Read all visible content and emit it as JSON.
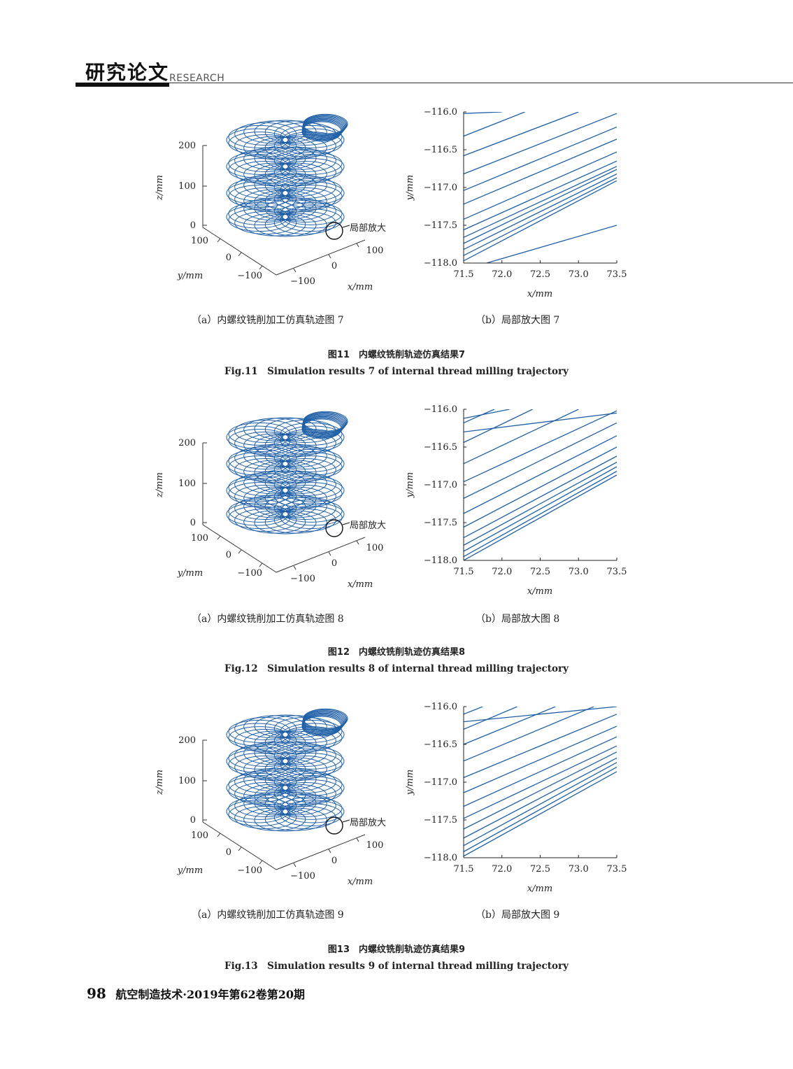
{
  "header": {
    "section_title": "研究论文",
    "section_en": "RESEARCH"
  },
  "figures": [
    {
      "sub_a_caption": "（a）内螺纹铣削加工仿真轨迹图 7",
      "sub_b_caption": "（b）局部放大图 7",
      "caption_cn": "图11　内螺纹铣削轨迹仿真结果7",
      "caption_en": "Fig.11　Simulation results 7 of internal thread milling trajectory",
      "plot3d": {
        "z_label": "z/mm",
        "y_label": "y/mm",
        "x_label": "x/mm",
        "z_ticks": [
          "200",
          "100",
          "0"
        ],
        "y_ticks": [
          "100",
          "0",
          "−100"
        ],
        "x_ticks": [
          "−100",
          "0",
          "100"
        ],
        "zoom_annotation": "局部放大"
      },
      "chart_data": {
        "type": "line",
        "xlabel": "x/mm",
        "ylabel": "y/mm",
        "xlim": [
          71.5,
          73.5
        ],
        "ylim": [
          -118.0,
          -116.0
        ],
        "x_ticks": [
          "71.5",
          "72.0",
          "72.5",
          "73.0",
          "73.5"
        ],
        "y_ticks": [
          "−116.0",
          "−116.5",
          "−117.0",
          "−117.5",
          "−118.0"
        ],
        "series": [
          {
            "x": [
              71.5,
              72.3
            ],
            "y": [
              -116.32,
              -116.0
            ]
          },
          {
            "x": [
              71.5,
              73.0
            ],
            "y": [
              -116.58,
              -116.0
            ]
          },
          {
            "x": [
              71.5,
              73.5
            ],
            "y": [
              -116.82,
              -116.02
            ]
          },
          {
            "x": [
              71.5,
              73.5
            ],
            "y": [
              -117.04,
              -116.2
            ]
          },
          {
            "x": [
              71.5,
              73.5
            ],
            "y": [
              -117.22,
              -116.36
            ]
          },
          {
            "x": [
              71.5,
              73.5
            ],
            "y": [
              -117.42,
              -116.53
            ]
          },
          {
            "x": [
              71.5,
              73.5
            ],
            "y": [
              -117.56,
              -116.65
            ]
          },
          {
            "x": [
              71.5,
              73.5
            ],
            "y": [
              -117.66,
              -116.72
            ]
          },
          {
            "x": [
              71.5,
              73.5
            ],
            "y": [
              -117.74,
              -116.76
            ]
          },
          {
            "x": [
              71.5,
              73.5
            ],
            "y": [
              -117.82,
              -116.82
            ]
          },
          {
            "x": [
              71.5,
              73.5
            ],
            "y": [
              -117.9,
              -116.87
            ]
          },
          {
            "x": [
              71.5,
              73.5
            ],
            "y": [
              -117.97,
              -116.91
            ]
          },
          {
            "x": [
              71.5,
              72.0
            ],
            "y": [
              -116.02,
              -116.0
            ]
          },
          {
            "x": [
              71.8,
              73.5
            ],
            "y": [
              -118.0,
              -117.5
            ]
          }
        ]
      }
    },
    {
      "sub_a_caption": "（a）内螺纹铣削加工仿真轨迹图 8",
      "sub_b_caption": "（b）局部放大图 8",
      "caption_cn": "图12　内螺纹铣削轨迹仿真结果8",
      "caption_en": "Fig.12　Simulation results 8 of internal thread milling trajectory",
      "plot3d": {
        "z_label": "z/mm",
        "y_label": "y/mm",
        "x_label": "x/mm",
        "z_ticks": [
          "200",
          "100",
          "0"
        ],
        "y_ticks": [
          "100",
          "0",
          "−100"
        ],
        "x_ticks": [
          "−100",
          "0",
          "100"
        ],
        "zoom_annotation": "局部放大"
      },
      "chart_data": {
        "type": "line",
        "xlabel": "x/mm",
        "ylabel": "y/mm",
        "xlim": [
          71.5,
          73.5
        ],
        "ylim": [
          -118.0,
          -116.0
        ],
        "x_ticks": [
          "71.5",
          "72.0",
          "72.5",
          "73.0",
          "73.5"
        ],
        "y_ticks": [
          "−116.0",
          "−116.5",
          "−117.0",
          "−117.5",
          "−118.0"
        ],
        "series": [
          {
            "x": [
              71.5,
              71.9
            ],
            "y": [
              -116.18,
              -116.0
            ]
          },
          {
            "x": [
              71.5,
              72.4
            ],
            "y": [
              -116.44,
              -116.0
            ]
          },
          {
            "x": [
              71.5,
              73.0
            ],
            "y": [
              -116.72,
              -116.0
            ]
          },
          {
            "x": [
              71.5,
              73.5
            ],
            "y": [
              -116.96,
              -116.02
            ]
          },
          {
            "x": [
              71.5,
              73.5
            ],
            "y": [
              -117.18,
              -116.18
            ]
          },
          {
            "x": [
              71.5,
              73.5
            ],
            "y": [
              -117.38,
              -116.35
            ]
          },
          {
            "x": [
              71.5,
              73.5
            ],
            "y": [
              -117.56,
              -116.5
            ]
          },
          {
            "x": [
              71.5,
              73.5
            ],
            "y": [
              -117.7,
              -116.62
            ]
          },
          {
            "x": [
              71.5,
              73.5
            ],
            "y": [
              -117.8,
              -116.7
            ]
          },
          {
            "x": [
              71.5,
              73.5
            ],
            "y": [
              -117.88,
              -116.76
            ]
          },
          {
            "x": [
              71.5,
              73.5
            ],
            "y": [
              -117.95,
              -116.82
            ]
          },
          {
            "x": [
              71.5,
              73.5
            ],
            "y": [
              -118.0,
              -116.87
            ]
          },
          {
            "x": [
              71.5,
              72.1
            ],
            "y": [
              -116.12,
              -116.0
            ]
          },
          {
            "x": [
              71.5,
              73.5
            ],
            "y": [
              -116.3,
              -116.05
            ]
          }
        ]
      }
    },
    {
      "sub_a_caption": "（a）内螺纹铣削加工仿真轨迹图 9",
      "sub_b_caption": "（b）局部放大图 9",
      "caption_cn": "图13　内螺纹铣削轨迹仿真结果9",
      "caption_en": "Fig.13　Simulation results 9 of internal thread milling trajectory",
      "plot3d": {
        "z_label": "z/mm",
        "y_label": "y/mm",
        "x_label": "x/mm",
        "z_ticks": [
          "200",
          "100",
          "0"
        ],
        "y_ticks": [
          "100",
          "0",
          "−100"
        ],
        "x_ticks": [
          "−100",
          "0",
          "100"
        ],
        "zoom_annotation": "局部放大"
      },
      "chart_data": {
        "type": "line",
        "xlabel": "x/mm",
        "ylabel": "y/mm",
        "xlim": [
          71.5,
          73.5
        ],
        "ylim": [
          -118.0,
          -116.0
        ],
        "x_ticks": [
          "71.5",
          "72.0",
          "72.5",
          "73.0",
          "73.5"
        ],
        "y_ticks": [
          "−116.0",
          "−116.5",
          "−117.0",
          "−117.5",
          "−118.0"
        ],
        "series": [
          {
            "x": [
              71.5,
              71.75
            ],
            "y": [
              -116.1,
              -116.0
            ]
          },
          {
            "x": [
              71.5,
              72.2
            ],
            "y": [
              -116.3,
              -116.0
            ]
          },
          {
            "x": [
              71.5,
              72.7
            ],
            "y": [
              -116.5,
              -116.0
            ]
          },
          {
            "x": [
              71.5,
              73.2
            ],
            "y": [
              -116.72,
              -116.0
            ]
          },
          {
            "x": [
              71.5,
              73.5
            ],
            "y": [
              -116.94,
              -116.1
            ]
          },
          {
            "x": [
              71.5,
              73.5
            ],
            "y": [
              -117.14,
              -116.26
            ]
          },
          {
            "x": [
              71.5,
              73.5
            ],
            "y": [
              -117.32,
              -116.4
            ]
          },
          {
            "x": [
              71.5,
              73.5
            ],
            "y": [
              -117.48,
              -116.52
            ]
          },
          {
            "x": [
              71.5,
              73.5
            ],
            "y": [
              -117.62,
              -116.6
            ]
          },
          {
            "x": [
              71.5,
              73.5
            ],
            "y": [
              -117.74,
              -116.68
            ]
          },
          {
            "x": [
              71.5,
              73.5
            ],
            "y": [
              -117.84,
              -116.74
            ]
          },
          {
            "x": [
              71.5,
              73.5
            ],
            "y": [
              -117.92,
              -116.8
            ]
          },
          {
            "x": [
              71.5,
              73.5
            ],
            "y": [
              -117.98,
              -116.86
            ]
          },
          {
            "x": [
              71.5,
              73.5
            ],
            "y": [
              -116.2,
              -116.0
            ]
          }
        ]
      }
    }
  ],
  "footer": {
    "page_number": "98",
    "journal": "航空制造技术·2019年第62卷第20期"
  },
  "colors": {
    "line": "#1f5fa6",
    "axis": "#222222"
  }
}
